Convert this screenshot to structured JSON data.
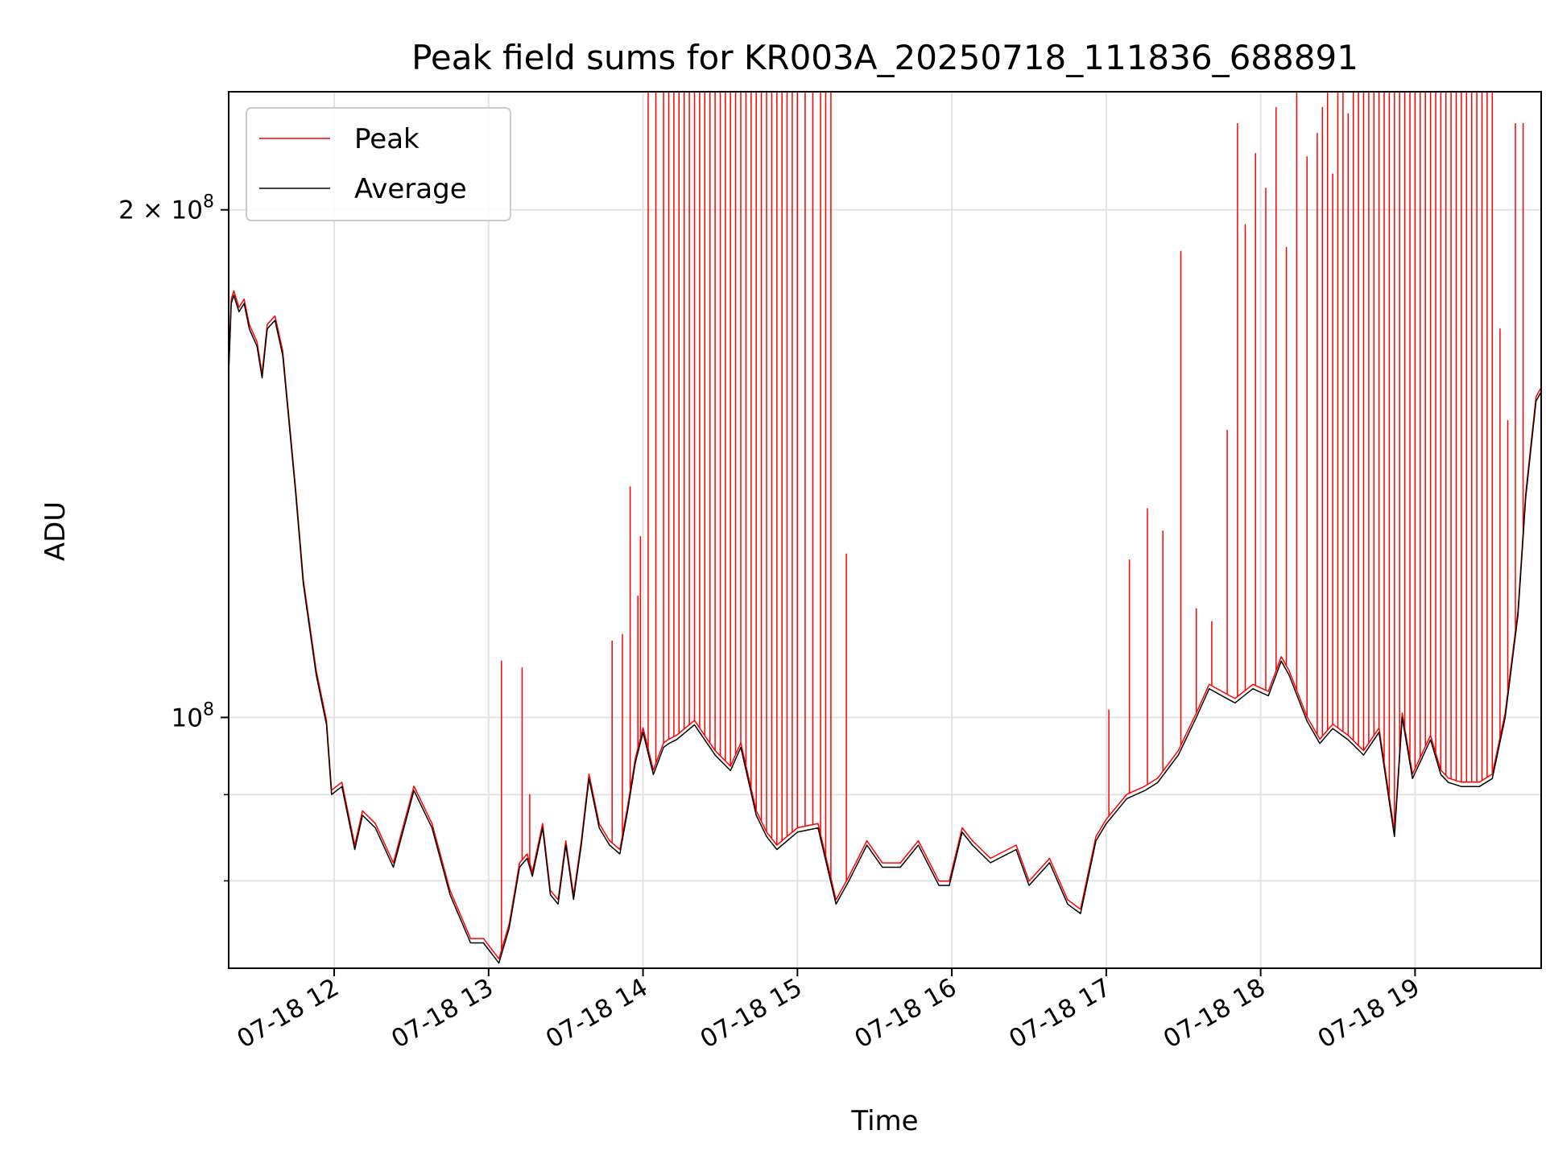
{
  "chart_data": {
    "type": "line",
    "title": "Peak field sums for KR003A_20250718_111836_688891",
    "xlabel": "Time",
    "ylabel": "ADU",
    "yscale": "log",
    "ylim": [
      71000000,
      235000000
    ],
    "xlim": [
      "2025-07-18 11:19",
      "2025-07-18 19:49"
    ],
    "x_tick_labels": [
      "07-18 12",
      "07-18 13",
      "07-18 14",
      "07-18 15",
      "07-18 16",
      "07-18 17",
      "07-18 18",
      "07-18 19"
    ],
    "x_tick_times": [
      "2025-07-18 12:00",
      "2025-07-18 13:00",
      "2025-07-18 14:00",
      "2025-07-18 15:00",
      "2025-07-18 16:00",
      "2025-07-18 17:00",
      "2025-07-18 18:00",
      "2025-07-18 19:00"
    ],
    "y_tick_labels": [
      {
        "base": "10",
        "exp": "8",
        "value": 100000000
      },
      {
        "mult": "2 × ",
        "base": "10",
        "exp": "8",
        "value": 200000000
      }
    ],
    "y_minor_ticks": [
      80000000,
      90000000
    ],
    "grid": true,
    "legend_position": "upper left",
    "series": [
      {
        "name": "Average",
        "color": "#000000",
        "x": [
          "2025-07-18 11:19",
          "2025-07-18 11:20",
          "2025-07-18 11:21",
          "2025-07-18 11:23",
          "2025-07-18 11:25",
          "2025-07-18 11:27",
          "2025-07-18 11:30",
          "2025-07-18 11:32",
          "2025-07-18 11:34",
          "2025-07-18 11:37",
          "2025-07-18 11:40",
          "2025-07-18 11:45",
          "2025-07-18 11:48",
          "2025-07-18 11:53",
          "2025-07-18 11:57",
          "2025-07-18 11:59",
          "2025-07-18 12:03",
          "2025-07-18 12:08",
          "2025-07-18 12:11",
          "2025-07-18 12:16",
          "2025-07-18 12:23",
          "2025-07-18 12:31",
          "2025-07-18 12:38",
          "2025-07-18 12:45",
          "2025-07-18 12:53",
          "2025-07-18 12:58",
          "2025-07-18 13:04",
          "2025-07-18 13:08",
          "2025-07-18 13:12",
          "2025-07-18 13:15",
          "2025-07-18 13:17",
          "2025-07-18 13:21",
          "2025-07-18 13:24",
          "2025-07-18 13:27",
          "2025-07-18 13:30",
          "2025-07-18 13:33",
          "2025-07-18 13:36",
          "2025-07-18 13:39",
          "2025-07-18 13:43",
          "2025-07-18 13:47",
          "2025-07-18 13:51",
          "2025-07-18 13:54",
          "2025-07-18 13:57",
          "2025-07-18 14:00",
          "2025-07-18 14:04",
          "2025-07-18 14:08",
          "2025-07-18 14:10",
          "2025-07-18 14:13",
          "2025-07-18 14:20",
          "2025-07-18 14:28",
          "2025-07-18 14:34",
          "2025-07-18 14:38",
          "2025-07-18 14:44",
          "2025-07-18 14:48",
          "2025-07-18 14:52",
          "2025-07-18 15:00",
          "2025-07-18 15:08",
          "2025-07-18 15:15",
          "2025-07-18 15:20",
          "2025-07-18 15:27",
          "2025-07-18 15:33",
          "2025-07-18 15:40",
          "2025-07-18 15:47",
          "2025-07-18 15:55",
          "2025-07-18 15:59",
          "2025-07-18 16:04",
          "2025-07-18 16:08",
          "2025-07-18 16:15",
          "2025-07-18 16:25",
          "2025-07-18 16:30",
          "2025-07-18 16:38",
          "2025-07-18 16:45",
          "2025-07-18 16:50",
          "2025-07-18 16:56",
          "2025-07-18 17:00",
          "2025-07-18 17:08",
          "2025-07-18 17:15",
          "2025-07-18 17:20",
          "2025-07-18 17:28",
          "2025-07-18 17:35",
          "2025-07-18 17:40",
          "2025-07-18 17:50",
          "2025-07-18 17:57",
          "2025-07-18 18:03",
          "2025-07-18 18:08",
          "2025-07-18 18:11",
          "2025-07-18 18:18",
          "2025-07-18 18:23",
          "2025-07-18 18:28",
          "2025-07-18 18:34",
          "2025-07-18 18:40",
          "2025-07-18 18:46",
          "2025-07-18 18:52",
          "2025-07-18 18:55",
          "2025-07-18 18:59",
          "2025-07-18 19:06",
          "2025-07-18 19:10",
          "2025-07-18 19:13",
          "2025-07-18 19:18",
          "2025-07-18 19:25",
          "2025-07-18 19:30",
          "2025-07-18 19:35",
          "2025-07-18 19:40",
          "2025-07-18 19:43",
          "2025-07-18 19:47",
          "2025-07-18 19:49"
        ],
        "values": [
          160000000,
          176000000,
          178000000,
          174000000,
          176000000,
          170000000,
          166000000,
          159000000,
          170000000,
          172000000,
          164000000,
          136000000,
          120000000,
          106000000,
          99000000,
          90000000,
          91000000,
          83500000,
          87500000,
          86000000,
          81500000,
          90500000,
          86000000,
          78500000,
          73500000,
          73500000,
          71500000,
          75000000,
          81500000,
          82500000,
          80500000,
          86000000,
          78500000,
          77500000,
          84000000,
          78000000,
          84000000,
          92000000,
          86000000,
          84000000,
          83000000,
          88000000,
          94000000,
          98000000,
          92500000,
          96000000,
          96500000,
          97000000,
          99000000,
          95000000,
          93000000,
          96000000,
          87500000,
          85000000,
          83500000,
          85500000,
          86000000,
          77500000,
          80000000,
          84000000,
          81500000,
          81500000,
          84000000,
          79500000,
          79500000,
          85500000,
          84000000,
          82000000,
          83500000,
          79500000,
          82000000,
          77500000,
          76500000,
          84500000,
          86500000,
          89500000,
          90500000,
          91500000,
          95000000,
          100000000,
          104000000,
          102000000,
          104000000,
          103000000,
          108000000,
          106000000,
          99500000,
          96500000,
          98500000,
          97000000,
          95000000,
          98000000,
          85000000,
          100000000,
          92000000,
          97000000,
          92500000,
          91500000,
          91000000,
          91000000,
          92000000,
          100000000,
          115000000,
          135000000,
          154000000,
          156000000
        ]
      },
      {
        "name": "Peak",
        "color": "#ff0000",
        "spike_times": [
          "2025-07-18 13:05",
          "2025-07-18 13:13",
          "2025-07-18 13:16",
          "2025-07-18 13:48",
          "2025-07-18 13:52",
          "2025-07-18 13:55",
          "2025-07-18 13:58",
          "2025-07-18 13:59",
          "2025-07-18 14:02",
          "2025-07-18 14:05",
          "2025-07-18 14:08",
          "2025-07-18 14:10",
          "2025-07-18 14:12",
          "2025-07-18 14:14",
          "2025-07-18 14:16",
          "2025-07-18 14:18",
          "2025-07-18 14:20",
          "2025-07-18 14:22",
          "2025-07-18 14:24",
          "2025-07-18 14:26",
          "2025-07-18 14:28",
          "2025-07-18 14:30",
          "2025-07-18 14:32",
          "2025-07-18 14:34",
          "2025-07-18 14:36",
          "2025-07-18 14:38",
          "2025-07-18 14:40",
          "2025-07-18 14:42",
          "2025-07-18 14:44",
          "2025-07-18 14:46",
          "2025-07-18 14:48",
          "2025-07-18 14:50",
          "2025-07-18 14:52",
          "2025-07-18 14:54",
          "2025-07-18 14:56",
          "2025-07-18 14:58",
          "2025-07-18 15:00",
          "2025-07-18 15:03",
          "2025-07-18 15:06",
          "2025-07-18 15:09",
          "2025-07-18 15:11",
          "2025-07-18 15:13",
          "2025-07-18 15:19",
          "2025-07-18 17:01",
          "2025-07-18 17:09",
          "2025-07-18 17:16",
          "2025-07-18 17:22",
          "2025-07-18 17:29",
          "2025-07-18 17:35",
          "2025-07-18 17:41",
          "2025-07-18 17:47",
          "2025-07-18 17:51",
          "2025-07-18 17:54",
          "2025-07-18 17:58",
          "2025-07-18 18:02",
          "2025-07-18 18:06",
          "2025-07-18 18:10",
          "2025-07-18 18:14",
          "2025-07-18 18:18",
          "2025-07-18 18:22",
          "2025-07-18 18:24",
          "2025-07-18 18:26",
          "2025-07-18 18:28",
          "2025-07-18 18:30",
          "2025-07-18 18:32",
          "2025-07-18 18:34",
          "2025-07-18 18:36",
          "2025-07-18 18:38",
          "2025-07-18 18:40",
          "2025-07-18 18:42",
          "2025-07-18 18:44",
          "2025-07-18 18:46",
          "2025-07-18 18:48",
          "2025-07-18 18:50",
          "2025-07-18 18:52",
          "2025-07-18 18:54",
          "2025-07-18 18:56",
          "2025-07-18 18:58",
          "2025-07-18 19:00",
          "2025-07-18 19:02",
          "2025-07-18 19:04",
          "2025-07-18 19:06",
          "2025-07-18 19:08",
          "2025-07-18 19:10",
          "2025-07-18 19:12",
          "2025-07-18 19:14",
          "2025-07-18 19:16",
          "2025-07-18 19:18",
          "2025-07-18 19:20",
          "2025-07-18 19:22",
          "2025-07-18 19:24",
          "2025-07-18 19:26",
          "2025-07-18 19:28",
          "2025-07-18 19:30",
          "2025-07-18 19:33",
          "2025-07-18 19:36",
          "2025-07-18 19:39",
          "2025-07-18 19:42"
        ],
        "spike_values": [
          108000000,
          107000000,
          90000000,
          111000000,
          112000000,
          137000000,
          118000000,
          128000000,
          235000000,
          235000000,
          235000000,
          235000000,
          235000000,
          235000000,
          235000000,
          235000000,
          235000000,
          235000000,
          235000000,
          235000000,
          235000000,
          235000000,
          235000000,
          235000000,
          235000000,
          235000000,
          235000000,
          235000000,
          235000000,
          235000000,
          235000000,
          235000000,
          235000000,
          235000000,
          235000000,
          235000000,
          235000000,
          235000000,
          235000000,
          235000000,
          235000000,
          235000000,
          125000000,
          101000000,
          124000000,
          133000000,
          129000000,
          189000000,
          116000000,
          114000000,
          148000000,
          225000000,
          196000000,
          216000000,
          206000000,
          230000000,
          190000000,
          235000000,
          215000000,
          222000000,
          230000000,
          235000000,
          210000000,
          235000000,
          235000000,
          228000000,
          235000000,
          235000000,
          235000000,
          235000000,
          235000000,
          235000000,
          235000000,
          235000000,
          235000000,
          235000000,
          235000000,
          235000000,
          235000000,
          235000000,
          235000000,
          235000000,
          235000000,
          235000000,
          235000000,
          235000000,
          235000000,
          235000000,
          235000000,
          235000000,
          235000000,
          235000000,
          235000000,
          235000000,
          170000000,
          150000000,
          225000000,
          225000000
        ]
      }
    ]
  }
}
